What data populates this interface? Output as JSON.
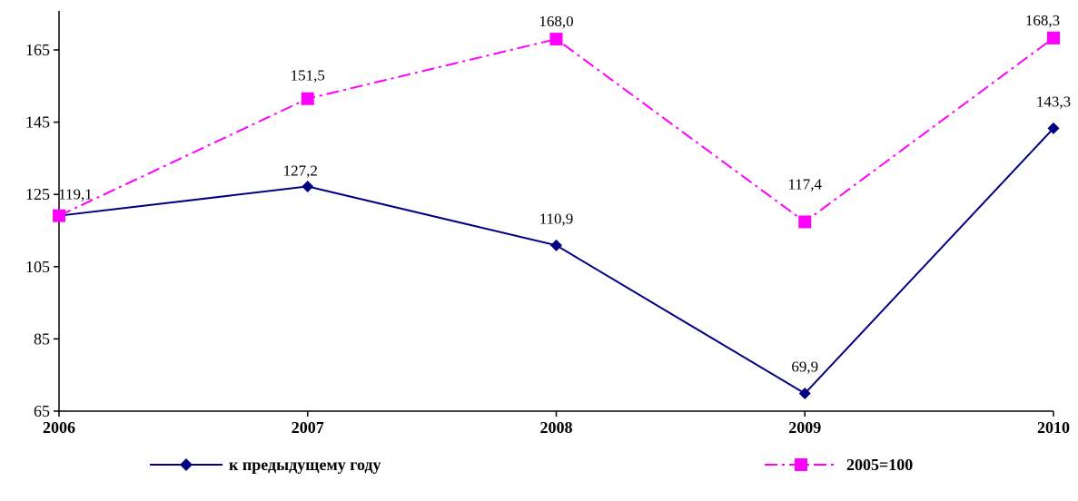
{
  "chart_data": {
    "type": "line",
    "categories": [
      "2006",
      "2007",
      "2008",
      "2009",
      "2010"
    ],
    "series": [
      {
        "name": "к предыдущему году",
        "values": [
          119.1,
          127.2,
          110.9,
          69.9,
          143.3
        ],
        "labels": [
          "",
          "127,2",
          "110,9",
          "69,9",
          "143,3"
        ],
        "color": "#000080",
        "marker": "diamond",
        "line_style": "solid"
      },
      {
        "name": "2005=100",
        "values": [
          119.1,
          151.5,
          168.0,
          117.4,
          168.3
        ],
        "labels": [
          "119,1",
          "151,5",
          "168,0",
          "117,4",
          "168,3"
        ],
        "color": "#ff00ff",
        "marker": "square",
        "line_style": "dash-dot"
      }
    ],
    "y_ticks": [
      "65",
      "85",
      "105",
      "125",
      "145",
      "165"
    ],
    "ylim": [
      65,
      165
    ],
    "grid": false,
    "legend_position": "bottom"
  }
}
